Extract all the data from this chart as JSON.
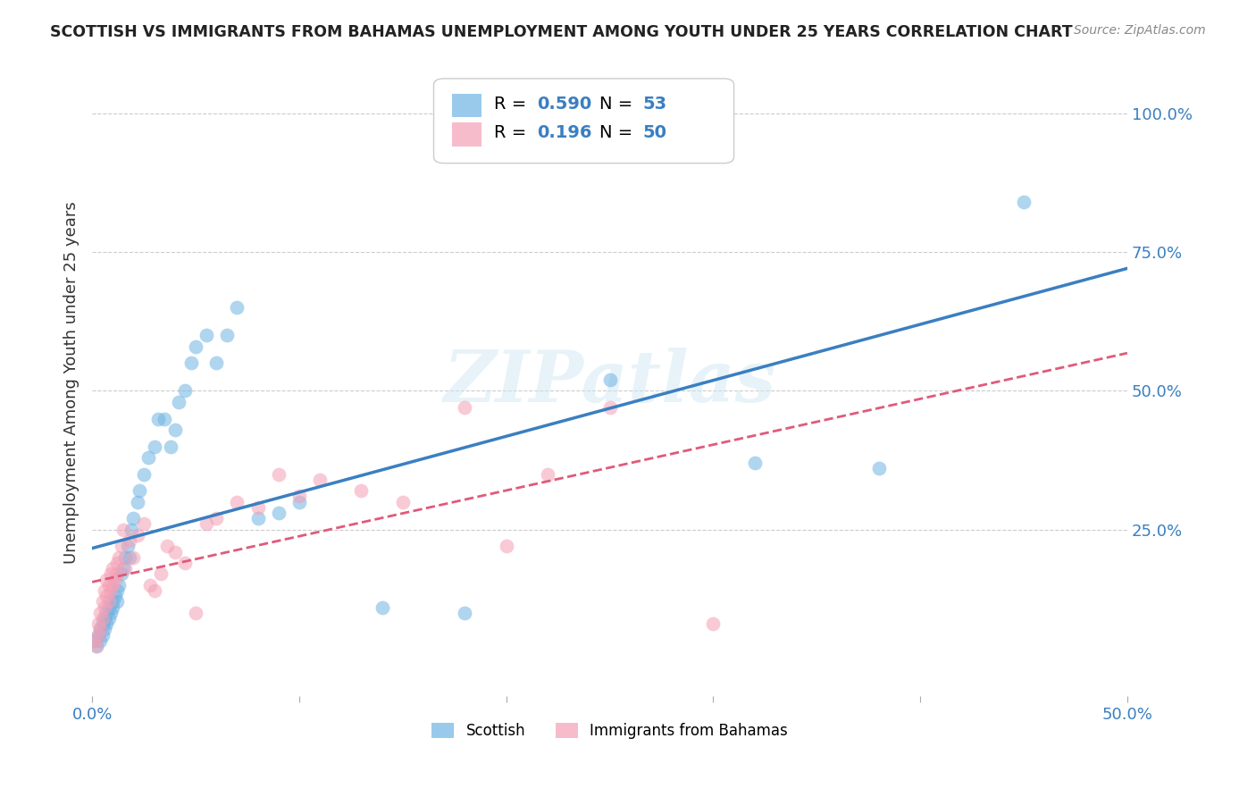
{
  "title": "SCOTTISH VS IMMIGRANTS FROM BAHAMAS UNEMPLOYMENT AMONG YOUTH UNDER 25 YEARS CORRELATION CHART",
  "source": "Source: ZipAtlas.com",
  "ylabel": "Unemployment Among Youth under 25 years",
  "xlim": [
    0.0,
    0.5
  ],
  "ylim": [
    -0.05,
    1.08
  ],
  "xtick_positions": [
    0.0,
    0.1,
    0.2,
    0.3,
    0.4,
    0.5
  ],
  "xtick_labels": [
    "0.0%",
    "",
    "",
    "",
    "",
    "50.0%"
  ],
  "ytick_labels_right": [
    "100.0%",
    "75.0%",
    "50.0%",
    "25.0%"
  ],
  "ytick_positions_right": [
    1.0,
    0.75,
    0.5,
    0.25
  ],
  "background_color": "#ffffff",
  "grid_color": "#cccccc",
  "scottish_color": "#6eb3e3",
  "bahamas_color": "#f4a0b5",
  "trend_scottish_color": "#3a7fc1",
  "trend_bahamas_color": "#e05a7a",
  "tick_label_color": "#3a7fc1",
  "R_scottish": 0.59,
  "N_scottish": 53,
  "R_bahamas": 0.196,
  "N_bahamas": 50,
  "watermark": "ZIPatlas",
  "scottish_x": [
    0.001,
    0.002,
    0.003,
    0.004,
    0.004,
    0.005,
    0.005,
    0.006,
    0.006,
    0.007,
    0.007,
    0.008,
    0.008,
    0.009,
    0.01,
    0.01,
    0.011,
    0.012,
    0.012,
    0.013,
    0.014,
    0.015,
    0.016,
    0.017,
    0.018,
    0.019,
    0.02,
    0.022,
    0.023,
    0.025,
    0.027,
    0.03,
    0.032,
    0.035,
    0.038,
    0.04,
    0.042,
    0.045,
    0.048,
    0.05,
    0.055,
    0.06,
    0.065,
    0.07,
    0.08,
    0.09,
    0.1,
    0.14,
    0.18,
    0.25,
    0.32,
    0.38,
    0.45
  ],
  "scottish_y": [
    0.05,
    0.04,
    0.06,
    0.07,
    0.05,
    0.08,
    0.06,
    0.09,
    0.07,
    0.1,
    0.08,
    0.11,
    0.09,
    0.1,
    0.12,
    0.11,
    0.13,
    0.14,
    0.12,
    0.15,
    0.17,
    0.18,
    0.2,
    0.22,
    0.2,
    0.25,
    0.27,
    0.3,
    0.32,
    0.35,
    0.38,
    0.4,
    0.45,
    0.45,
    0.4,
    0.43,
    0.48,
    0.5,
    0.55,
    0.58,
    0.6,
    0.55,
    0.6,
    0.65,
    0.27,
    0.28,
    0.3,
    0.11,
    0.1,
    0.52,
    0.37,
    0.36,
    0.84
  ],
  "bahamas_x": [
    0.001,
    0.002,
    0.003,
    0.003,
    0.004,
    0.004,
    0.005,
    0.005,
    0.006,
    0.006,
    0.007,
    0.007,
    0.008,
    0.008,
    0.009,
    0.009,
    0.01,
    0.01,
    0.011,
    0.012,
    0.012,
    0.013,
    0.014,
    0.015,
    0.016,
    0.018,
    0.02,
    0.022,
    0.025,
    0.028,
    0.03,
    0.033,
    0.036,
    0.04,
    0.045,
    0.05,
    0.055,
    0.06,
    0.07,
    0.08,
    0.09,
    0.1,
    0.11,
    0.13,
    0.15,
    0.18,
    0.2,
    0.22,
    0.25,
    0.3
  ],
  "bahamas_y": [
    0.05,
    0.04,
    0.08,
    0.06,
    0.1,
    0.07,
    0.12,
    0.09,
    0.14,
    0.11,
    0.16,
    0.13,
    0.15,
    0.12,
    0.17,
    0.14,
    0.18,
    0.15,
    0.16,
    0.19,
    0.17,
    0.2,
    0.22,
    0.25,
    0.18,
    0.23,
    0.2,
    0.24,
    0.26,
    0.15,
    0.14,
    0.17,
    0.22,
    0.21,
    0.19,
    0.1,
    0.26,
    0.27,
    0.3,
    0.29,
    0.35,
    0.31,
    0.34,
    0.32,
    0.3,
    0.47,
    0.22,
    0.35,
    0.47,
    0.08
  ]
}
